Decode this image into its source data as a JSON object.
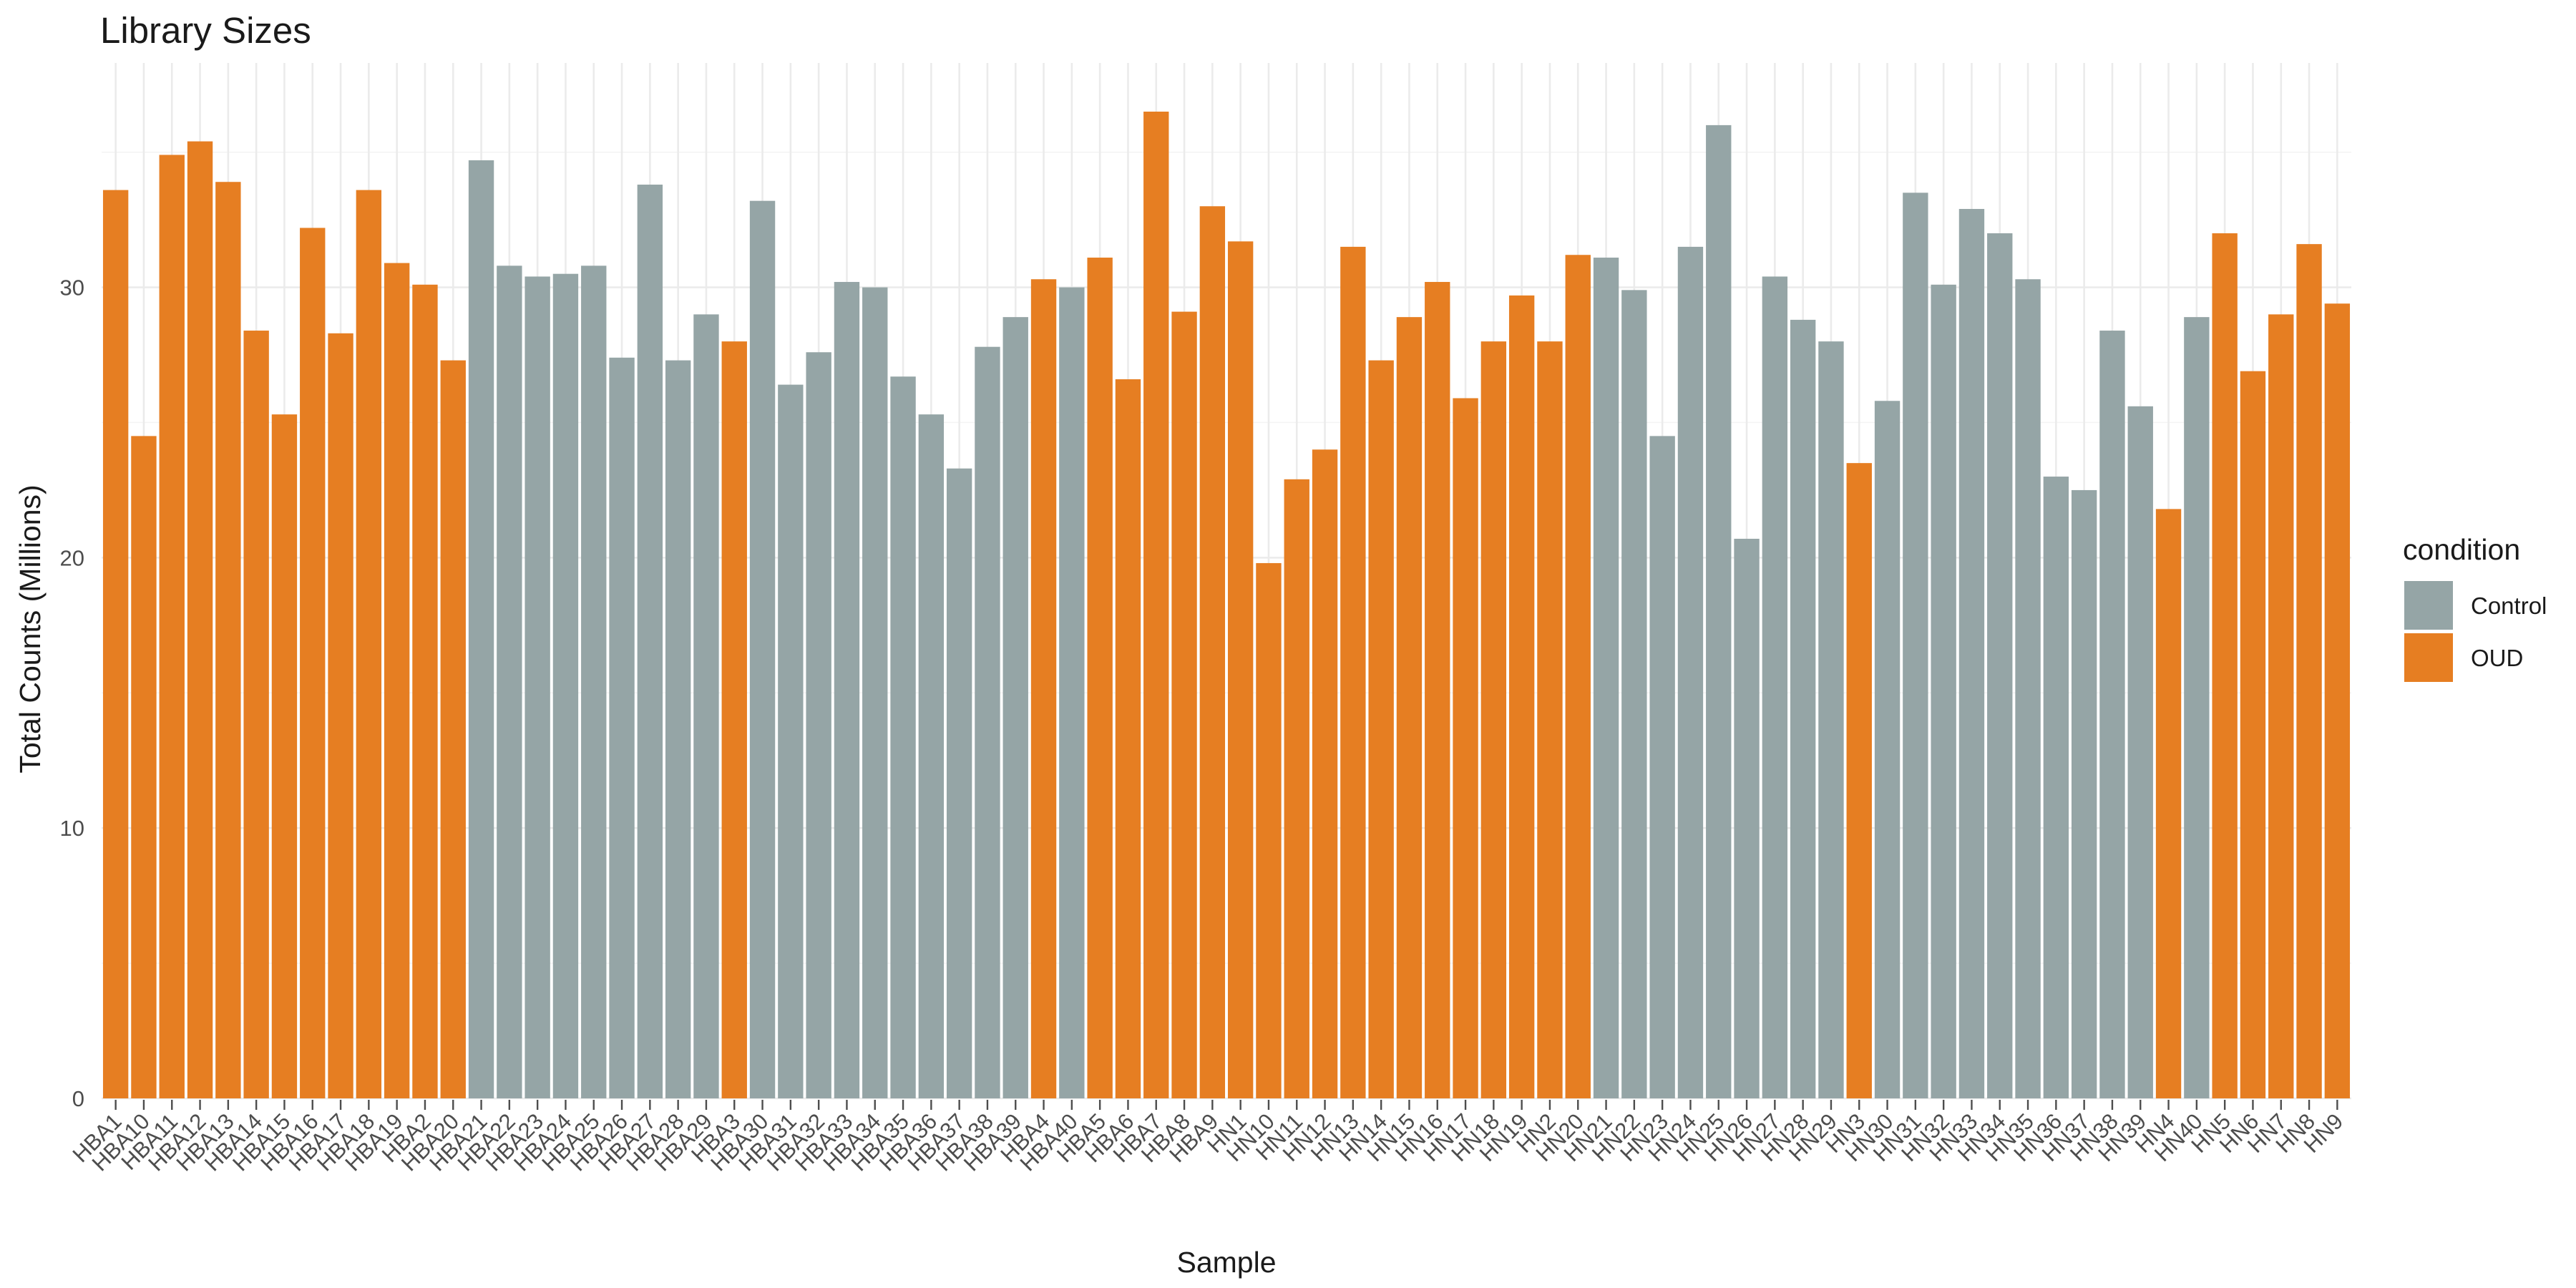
{
  "chart_data": {
    "type": "bar",
    "title": "Library Sizes",
    "xlabel": "Sample",
    "ylabel": "Total Counts (Millions)",
    "ylim": [
      0,
      38.3
    ],
    "yticks": [
      0,
      10,
      20,
      30
    ],
    "grid": true,
    "legend": {
      "title": "condition",
      "placement": "right"
    },
    "groups": [
      {
        "name": "Control",
        "color": "#95A5A6"
      },
      {
        "name": "OUD",
        "color": "#E67E22"
      }
    ],
    "categories": [
      "HBA1",
      "HBA10",
      "HBA11",
      "HBA12",
      "HBA13",
      "HBA14",
      "HBA15",
      "HBA16",
      "HBA17",
      "HBA18",
      "HBA19",
      "HBA2",
      "HBA20",
      "HBA21",
      "HBA22",
      "HBA23",
      "HBA24",
      "HBA25",
      "HBA26",
      "HBA27",
      "HBA28",
      "HBA29",
      "HBA3",
      "HBA30",
      "HBA31",
      "HBA32",
      "HBA33",
      "HBA34",
      "HBA35",
      "HBA36",
      "HBA37",
      "HBA38",
      "HBA39",
      "HBA4",
      "HBA40",
      "HBA5",
      "HBA6",
      "HBA7",
      "HBA8",
      "HBA9",
      "HN1",
      "HN10",
      "HN11",
      "HN12",
      "HN13",
      "HN14",
      "HN15",
      "HN16",
      "HN17",
      "HN18",
      "HN19",
      "HN2",
      "HN20",
      "HN21",
      "HN22",
      "HN23",
      "HN24",
      "HN25",
      "HN26",
      "HN27",
      "HN28",
      "HN29",
      "HN3",
      "HN30",
      "HN31",
      "HN32",
      "HN33",
      "HN34",
      "HN35",
      "HN36",
      "HN37",
      "HN38",
      "HN39",
      "HN4",
      "HN40",
      "HN5",
      "HN6",
      "HN7",
      "HN8",
      "HN9"
    ],
    "values": [
      33.6,
      24.5,
      34.9,
      35.4,
      33.9,
      28.4,
      25.3,
      32.2,
      28.3,
      33.6,
      30.9,
      30.1,
      27.3,
      34.7,
      30.8,
      30.4,
      30.5,
      30.8,
      27.4,
      33.8,
      27.3,
      29.0,
      28.0,
      33.2,
      26.4,
      27.6,
      30.2,
      30.0,
      26.7,
      25.3,
      23.3,
      27.8,
      28.9,
      30.3,
      30.0,
      31.1,
      26.6,
      36.5,
      29.1,
      33.0,
      31.7,
      19.8,
      22.9,
      24.0,
      31.5,
      27.3,
      28.9,
      30.2,
      25.9,
      28.0,
      29.7,
      28.0,
      31.2,
      31.1,
      29.9,
      24.5,
      31.5,
      36.0,
      20.7,
      30.4,
      28.8,
      28.0,
      23.5,
      25.8,
      33.5,
      30.1,
      32.9,
      32.0,
      30.3,
      23.0,
      22.5,
      28.4,
      25.6,
      21.8,
      28.9,
      32.0,
      26.9,
      29.0,
      31.6,
      29.4
    ],
    "conditions": [
      "OUD",
      "OUD",
      "OUD",
      "OUD",
      "OUD",
      "OUD",
      "OUD",
      "OUD",
      "OUD",
      "OUD",
      "OUD",
      "OUD",
      "OUD",
      "Control",
      "Control",
      "Control",
      "Control",
      "Control",
      "Control",
      "Control",
      "Control",
      "Control",
      "OUD",
      "Control",
      "Control",
      "Control",
      "Control",
      "Control",
      "Control",
      "Control",
      "Control",
      "Control",
      "Control",
      "OUD",
      "Control",
      "OUD",
      "OUD",
      "OUD",
      "OUD",
      "OUD",
      "OUD",
      "OUD",
      "OUD",
      "OUD",
      "OUD",
      "OUD",
      "OUD",
      "OUD",
      "OUD",
      "OUD",
      "OUD",
      "OUD",
      "OUD",
      "Control",
      "Control",
      "Control",
      "Control",
      "Control",
      "Control",
      "Control",
      "Control",
      "Control",
      "OUD",
      "Control",
      "Control",
      "Control",
      "Control",
      "Control",
      "Control",
      "Control",
      "Control",
      "Control",
      "Control",
      "OUD",
      "Control",
      "OUD",
      "OUD",
      "OUD",
      "OUD",
      "OUD"
    ]
  }
}
